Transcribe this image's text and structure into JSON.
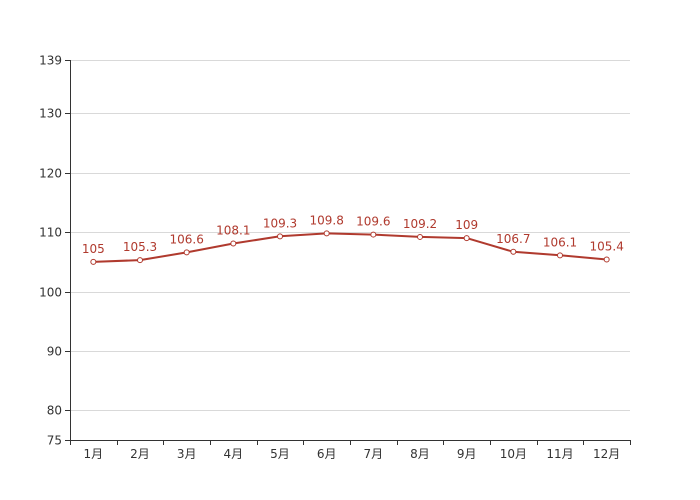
{
  "chart_data": {
    "type": "line",
    "title": "",
    "xlabel": "",
    "ylabel": "",
    "categories": [
      "1月",
      "2月",
      "3月",
      "4月",
      "5月",
      "6月",
      "7月",
      "8月",
      "9月",
      "10月",
      "11月",
      "12月"
    ],
    "series": [
      {
        "values": [
          105,
          105.3,
          106.6,
          108.1,
          109.3,
          109.8,
          109.6,
          109.2,
          109,
          106.7,
          106.1,
          105.4
        ],
        "labels": [
          "105",
          "105.3",
          "106.6",
          "108.1",
          "109.3",
          "109.8",
          "109.6",
          "109.2",
          "109",
          "106.7",
          "106.1",
          "105.4"
        ],
        "color": "#b03a2e"
      }
    ],
    "ylim": [
      75,
      139
    ],
    "yticks": [
      75,
      80,
      90,
      100,
      110,
      120,
      130,
      139
    ],
    "ytick_labels": [
      "75",
      "80",
      "90",
      "100",
      "110",
      "120",
      "130",
      "139"
    ],
    "grid": true,
    "legend": "none"
  }
}
